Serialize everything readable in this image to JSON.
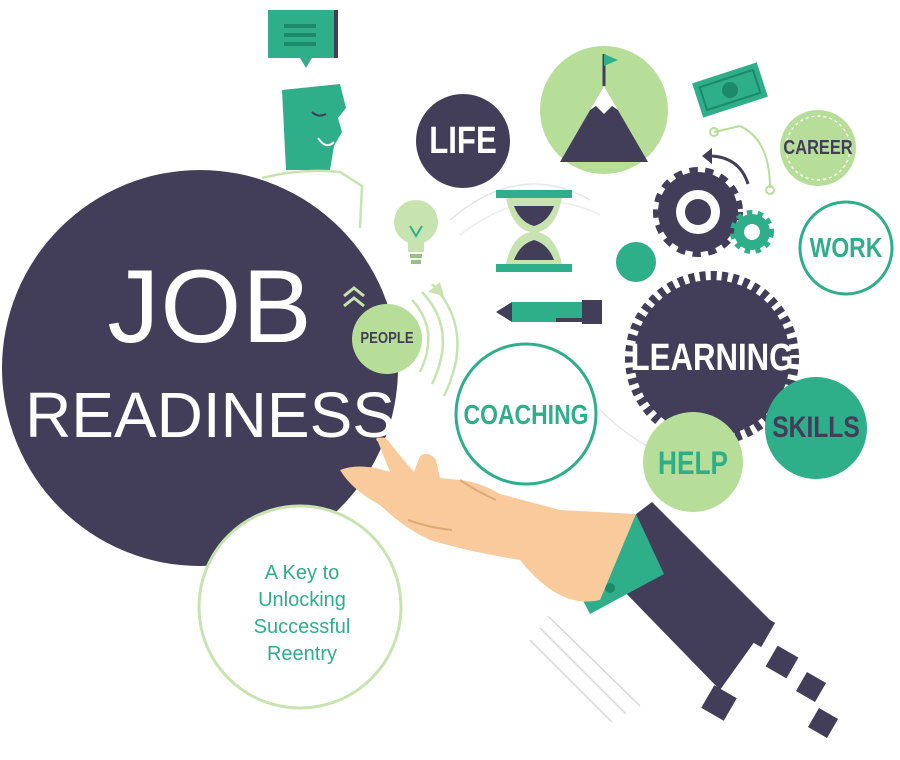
{
  "headline": {
    "line1": "JOB",
    "line2": "READINESS"
  },
  "subtitle": [
    "A Key to",
    "Unlocking",
    "Successful",
    "Reentry"
  ],
  "bubbles": {
    "life": "LIFE",
    "career": "CAREER",
    "work": "WORK",
    "people": "PEOPLE",
    "coaching": "COACHING",
    "learning": "LEARNING",
    "skills": "SKILLS",
    "help": "HELP"
  },
  "colors": {
    "navy": "#423e59",
    "teal": "#2fae8a",
    "light_green": "#b7de98",
    "pale_green": "#c7e4b0",
    "skin": "#f9cb9c",
    "white": "#ffffff"
  }
}
